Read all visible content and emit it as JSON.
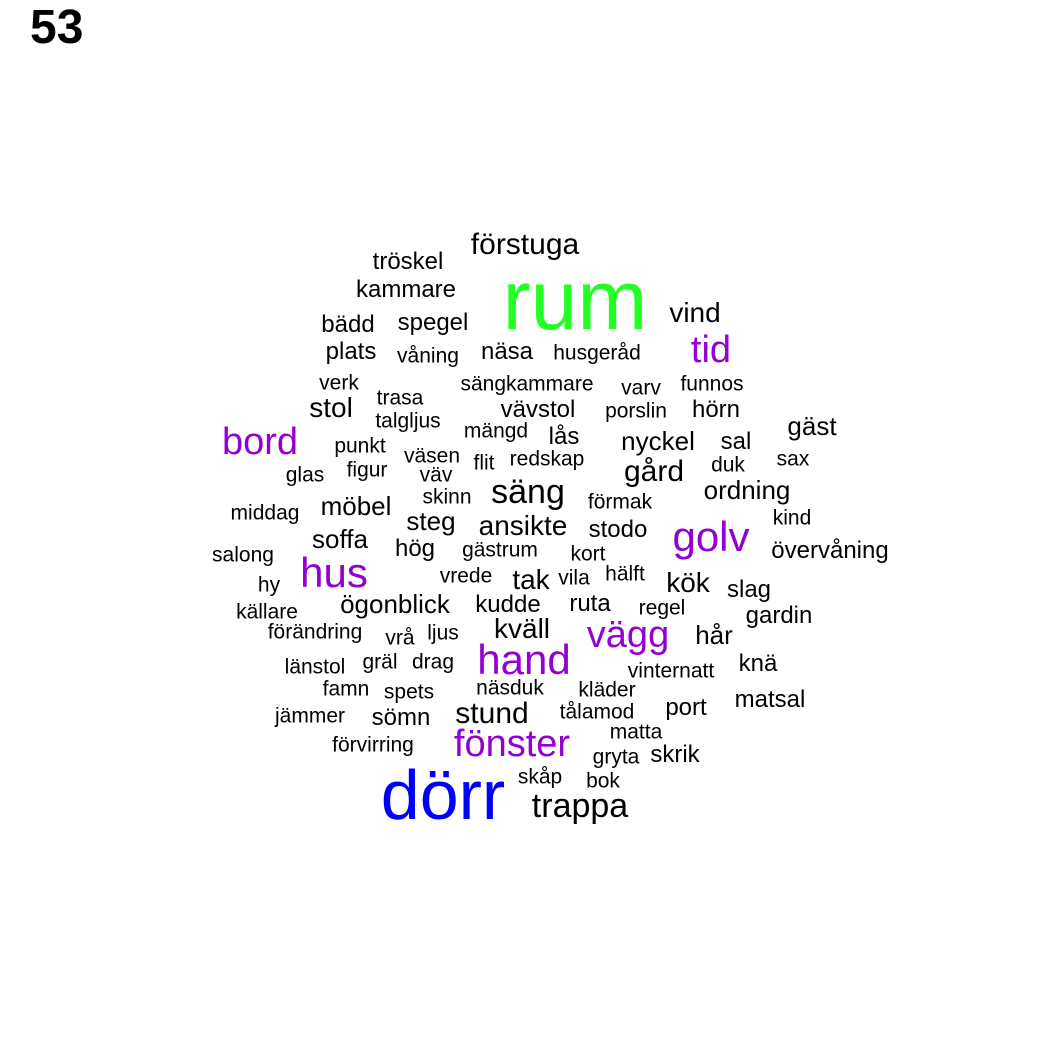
{
  "page_number": "53",
  "colors": {
    "green": "#22ff22",
    "blue": "#0000ff",
    "purple": "#9400d3",
    "black": "#000000"
  },
  "words": [
    {
      "text": "rum",
      "color": "green"
    },
    {
      "text": "dörr",
      "color": "blue"
    },
    {
      "text": "förstuga",
      "color": "black"
    },
    {
      "text": "tröskel",
      "color": "black"
    },
    {
      "text": "kammare",
      "color": "black"
    },
    {
      "text": "vind",
      "color": "black"
    },
    {
      "text": "bädd",
      "color": "black"
    },
    {
      "text": "spegel",
      "color": "black"
    },
    {
      "text": "tid",
      "color": "purple"
    },
    {
      "text": "plats",
      "color": "black"
    },
    {
      "text": "våning",
      "color": "black"
    },
    {
      "text": "näsa",
      "color": "black"
    },
    {
      "text": "husgeråd",
      "color": "black"
    },
    {
      "text": "verk",
      "color": "black"
    },
    {
      "text": "sängkammare",
      "color": "black"
    },
    {
      "text": "varv",
      "color": "black"
    },
    {
      "text": "funnos",
      "color": "black"
    },
    {
      "text": "trasa",
      "color": "black"
    },
    {
      "text": "stol",
      "color": "black"
    },
    {
      "text": "vävstol",
      "color": "black"
    },
    {
      "text": "porslin",
      "color": "black"
    },
    {
      "text": "hörn",
      "color": "black"
    },
    {
      "text": "talgljus",
      "color": "black"
    },
    {
      "text": "gäst",
      "color": "black"
    },
    {
      "text": "bord",
      "color": "purple"
    },
    {
      "text": "mängd",
      "color": "black"
    },
    {
      "text": "lås",
      "color": "black"
    },
    {
      "text": "nyckel",
      "color": "black"
    },
    {
      "text": "sal",
      "color": "black"
    },
    {
      "text": "punkt",
      "color": "black"
    },
    {
      "text": "väsen",
      "color": "black"
    },
    {
      "text": "flit",
      "color": "black"
    },
    {
      "text": "redskap",
      "color": "black"
    },
    {
      "text": "duk",
      "color": "black"
    },
    {
      "text": "sax",
      "color": "black"
    },
    {
      "text": "glas",
      "color": "black"
    },
    {
      "text": "figur",
      "color": "black"
    },
    {
      "text": "väv",
      "color": "black"
    },
    {
      "text": "gård",
      "color": "black"
    },
    {
      "text": "säng",
      "color": "black"
    },
    {
      "text": "ordning",
      "color": "black"
    },
    {
      "text": "middag",
      "color": "black"
    },
    {
      "text": "möbel",
      "color": "black"
    },
    {
      "text": "skinn",
      "color": "black"
    },
    {
      "text": "förmak",
      "color": "black"
    },
    {
      "text": "kind",
      "color": "black"
    },
    {
      "text": "steg",
      "color": "black"
    },
    {
      "text": "ansikte",
      "color": "black"
    },
    {
      "text": "stodo",
      "color": "black"
    },
    {
      "text": "golv",
      "color": "purple"
    },
    {
      "text": "soffa",
      "color": "black"
    },
    {
      "text": "salong",
      "color": "black"
    },
    {
      "text": "hög",
      "color": "black"
    },
    {
      "text": "gästrum",
      "color": "black"
    },
    {
      "text": "kort",
      "color": "black"
    },
    {
      "text": "övervåning",
      "color": "black"
    },
    {
      "text": "hus",
      "color": "purple"
    },
    {
      "text": "vrede",
      "color": "black"
    },
    {
      "text": "tak",
      "color": "black"
    },
    {
      "text": "vila",
      "color": "black"
    },
    {
      "text": "hälft",
      "color": "black"
    },
    {
      "text": "kök",
      "color": "black"
    },
    {
      "text": "slag",
      "color": "black"
    },
    {
      "text": "hy",
      "color": "black"
    },
    {
      "text": "ögonblick",
      "color": "black"
    },
    {
      "text": "kudde",
      "color": "black"
    },
    {
      "text": "ruta",
      "color": "black"
    },
    {
      "text": "regel",
      "color": "black"
    },
    {
      "text": "gardin",
      "color": "black"
    },
    {
      "text": "källare",
      "color": "black"
    },
    {
      "text": "förändring",
      "color": "black"
    },
    {
      "text": "vrå",
      "color": "black"
    },
    {
      "text": "ljus",
      "color": "black"
    },
    {
      "text": "kväll",
      "color": "black"
    },
    {
      "text": "vägg",
      "color": "purple"
    },
    {
      "text": "hår",
      "color": "black"
    },
    {
      "text": "hand",
      "color": "purple"
    },
    {
      "text": "länstol",
      "color": "black"
    },
    {
      "text": "gräl",
      "color": "black"
    },
    {
      "text": "drag",
      "color": "black"
    },
    {
      "text": "knä",
      "color": "black"
    },
    {
      "text": "vinternatt",
      "color": "black"
    },
    {
      "text": "famn",
      "color": "black"
    },
    {
      "text": "spets",
      "color": "black"
    },
    {
      "text": "näsduk",
      "color": "black"
    },
    {
      "text": "kläder",
      "color": "black"
    },
    {
      "text": "matsal",
      "color": "black"
    },
    {
      "text": "jämmer",
      "color": "black"
    },
    {
      "text": "sömn",
      "color": "black"
    },
    {
      "text": "stund",
      "color": "black"
    },
    {
      "text": "tålamod",
      "color": "black"
    },
    {
      "text": "port",
      "color": "black"
    },
    {
      "text": "fönster",
      "color": "purple"
    },
    {
      "text": "matta",
      "color": "black"
    },
    {
      "text": "förvirring",
      "color": "black"
    },
    {
      "text": "gryta",
      "color": "black"
    },
    {
      "text": "skrik",
      "color": "black"
    },
    {
      "text": "skåp",
      "color": "black"
    },
    {
      "text": "bok",
      "color": "black"
    },
    {
      "text": "trappa",
      "color": "black"
    }
  ]
}
